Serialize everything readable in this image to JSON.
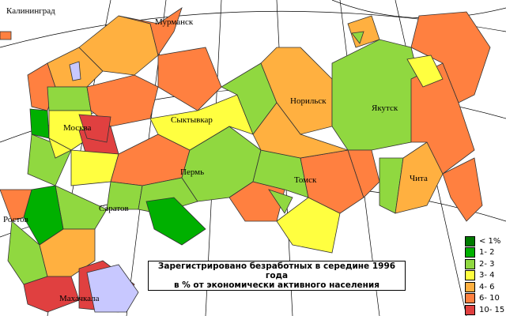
{
  "title": {
    "line1": "Зарегистрировано безработных в середине 1996 года",
    "line2": "в % от экономически активного населения"
  },
  "legend": [
    {
      "label": "< 1%",
      "color": "#007a00"
    },
    {
      "label": "1- 2",
      "color": "#00b000"
    },
    {
      "label": "2- 3",
      "color": "#90d840"
    },
    {
      "label": "3- 4",
      "color": "#ffff40"
    },
    {
      "label": "4- 6",
      "color": "#ffb040"
    },
    {
      "label": "6- 10",
      "color": "#ff8040"
    },
    {
      "label": "10- 15",
      "color": "#e04040"
    }
  ],
  "cities": {
    "kaliningrad": "Калининград",
    "murmansk": "Мурманск",
    "moscow": "Москва",
    "syktyvkar": "Сыктывкар",
    "norilsk": "Норильск",
    "yakutsk": "Якутск",
    "perm": "Пермь",
    "tomsk": "Томск",
    "chita": "Чита",
    "saratov": "Саратов",
    "rostov": "Ростов",
    "makhachkala": "Махачкала"
  }
}
